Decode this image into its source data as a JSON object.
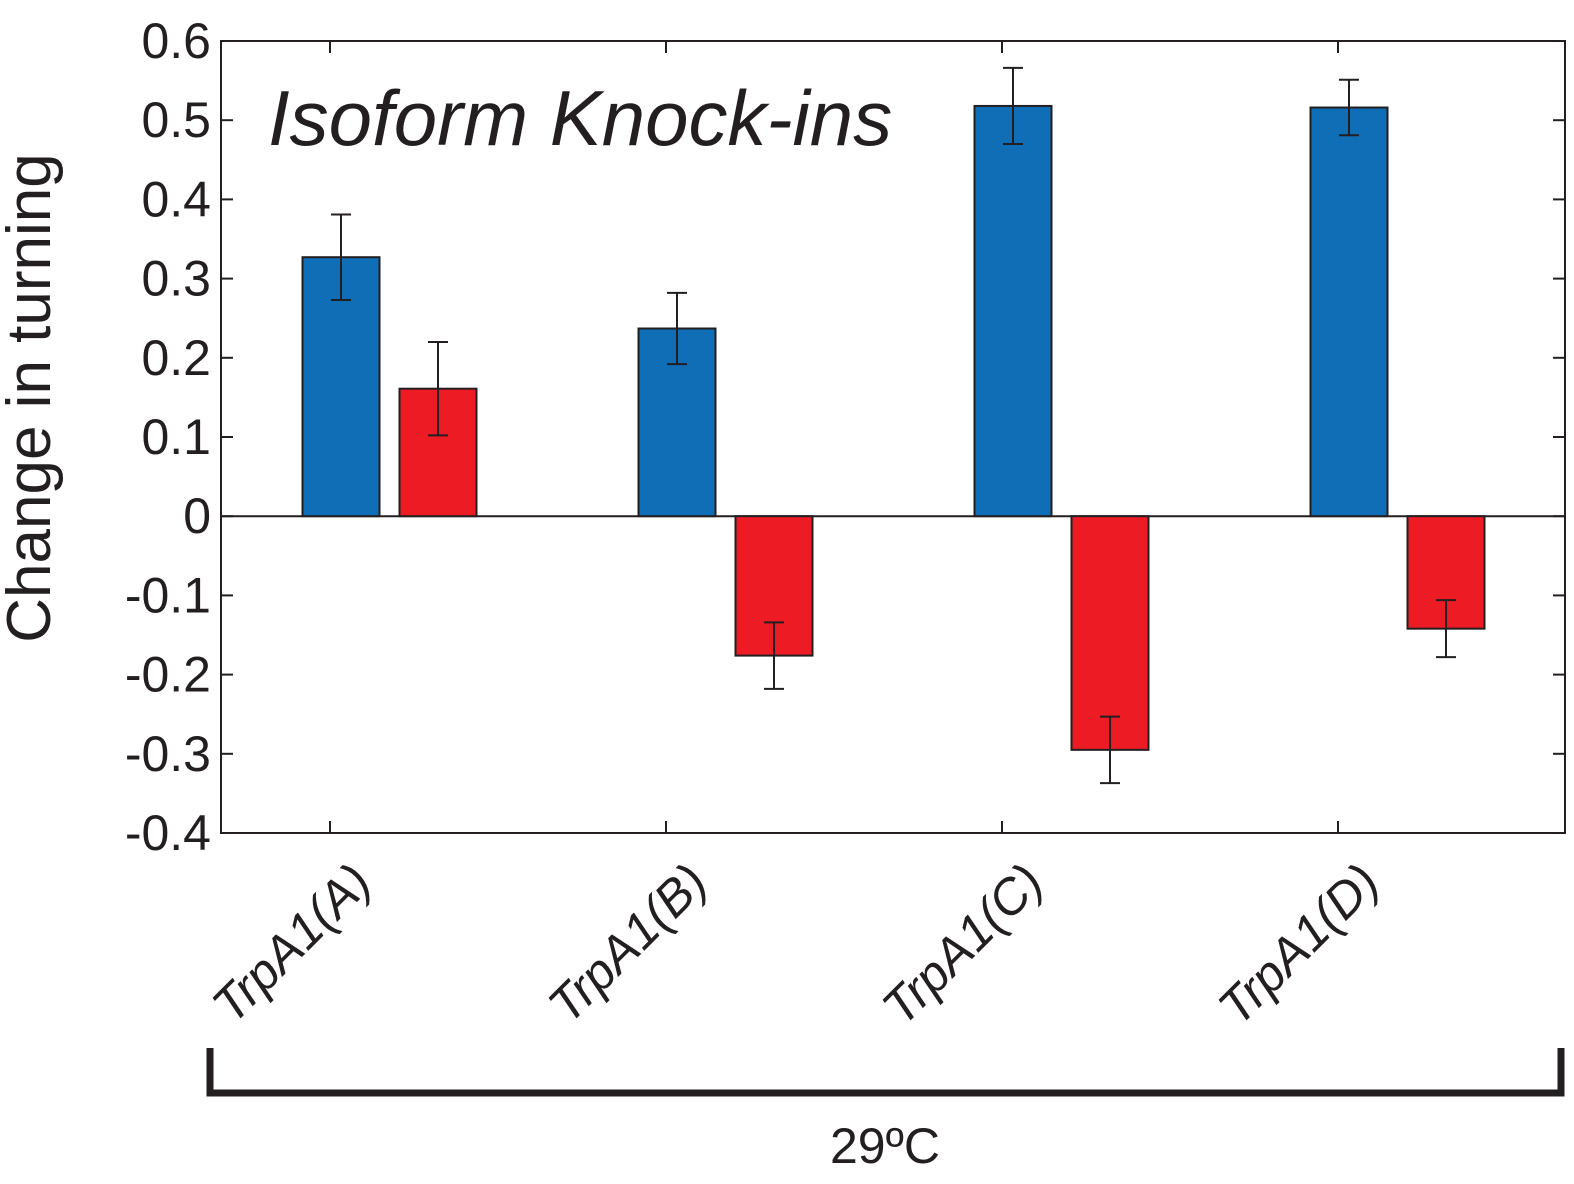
{
  "chart_data": {
    "type": "bar",
    "title": "Isoform Knock-ins",
    "ylabel": "Change in turning",
    "xlabel": "",
    "categories": [
      "TrpA1(A)",
      "TrpA1(B)",
      "TrpA1(C)",
      "TrpA1(D)"
    ],
    "series": [
      {
        "color": "#106eb7",
        "values": [
          0.327,
          0.237,
          0.518,
          0.516
        ],
        "errors": [
          0.054,
          0.045,
          0.048,
          0.035
        ]
      },
      {
        "color": "#ed1c24",
        "values": [
          0.161,
          -0.176,
          -0.295,
          -0.142
        ],
        "errors": [
          0.059,
          0.042,
          0.042,
          0.036
        ]
      }
    ],
    "ylim": [
      -0.4,
      0.6
    ],
    "yticks": [
      0.6,
      0.5,
      0.4,
      0.3,
      0.2,
      0.1,
      0,
      -0.1,
      -0.2,
      -0.3,
      -0.4
    ],
    "ytick_labels": [
      "0.6",
      "0.5",
      "0.4",
      "0.3",
      "0.2",
      "0.1",
      "0",
      "-0.1",
      "-0.2",
      "-0.3",
      "-0.4"
    ],
    "group_label": "29ºC",
    "grid": false
  }
}
